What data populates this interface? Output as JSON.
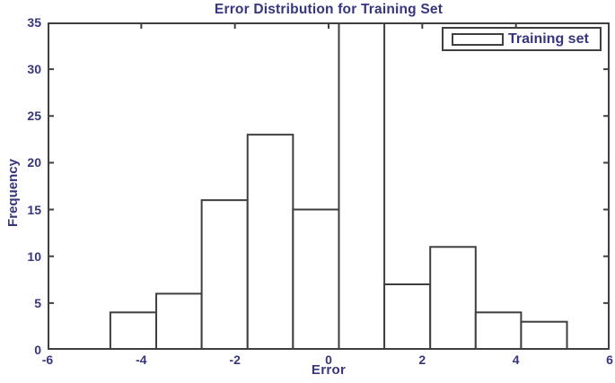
{
  "chart_data": {
    "type": "bar",
    "subtype": "histogram",
    "title": "Error Distribution for Training Set",
    "xlabel": "Error",
    "ylabel": "Frequency",
    "xlim": [
      -6,
      6
    ],
    "ylim": [
      0,
      35
    ],
    "x_ticks": [
      -6,
      -4,
      -2,
      0,
      2,
      4,
      6
    ],
    "y_ticks": [
      0,
      5,
      10,
      15,
      20,
      25,
      30,
      35
    ],
    "bin_edges": [
      -4.66,
      -3.68,
      -2.71,
      -1.73,
      -0.76,
      0.22,
      1.19,
      2.17,
      3.14,
      4.11,
      5.09
    ],
    "values": [
      4,
      6,
      16,
      23,
      15,
      null,
      7,
      11,
      4,
      3
    ],
    "clipped_bar": {
      "index": 5,
      "note": "this bar exceeds the y-axis maximum of 35 and is drawn clipped at the top of the plot; its true value is not visible"
    },
    "legend": {
      "label": "Training set",
      "position": "top-right"
    },
    "grid": false,
    "tick_direction": "in",
    "bar_fill": "#ffffff",
    "bar_edge_color": "#3f3f3f"
  },
  "colors": {
    "text": "#36367e",
    "axis_line": "#3f3f3f",
    "background": "#ffffff"
  }
}
